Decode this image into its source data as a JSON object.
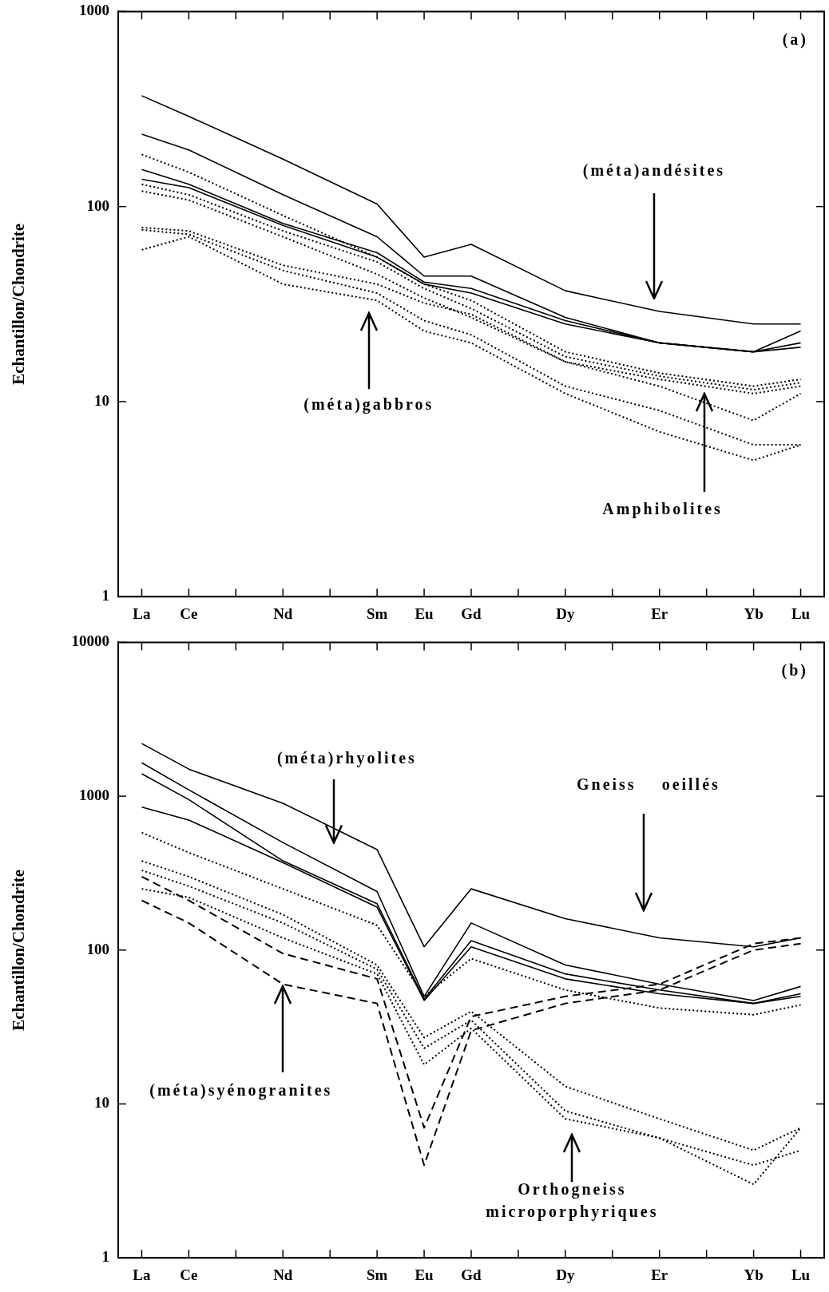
{
  "chart_data": [
    {
      "type": "line",
      "ylabel": "Echantillon/Chondrite",
      "categories": [
        "La",
        "Ce",
        null,
        "Nd",
        null,
        "Sm",
        "Eu",
        "Gd",
        null,
        "Dy",
        null,
        "Er",
        null,
        "Yb",
        "Lu"
      ],
      "log": true,
      "ylim": [
        1,
        1000
      ],
      "yticks": [
        1,
        10,
        100,
        1000
      ],
      "series": [
        {
          "color": "#000000",
          "line_style": "solid",
          "values": [
            370,
            290,
            null,
            175,
            null,
            103,
            55,
            64,
            null,
            37,
            null,
            29,
            null,
            25,
            25
          ]
        },
        {
          "color": "#000000",
          "line_style": "solid",
          "values": [
            235,
            195,
            null,
            115,
            null,
            70,
            44,
            44,
            null,
            27,
            null,
            20,
            null,
            18,
            23
          ]
        },
        {
          "color": "#000000",
          "line_style": "solid",
          "values": [
            155,
            130,
            null,
            82,
            null,
            58,
            41,
            38,
            null,
            26,
            null,
            20,
            null,
            18,
            20
          ]
        },
        {
          "color": "#000000",
          "line_style": "solid",
          "values": [
            138,
            125,
            null,
            80,
            null,
            55,
            40,
            36,
            null,
            25,
            null,
            20,
            null,
            18,
            19
          ]
        },
        {
          "color": "#000000",
          "line_style": "dotted",
          "values": [
            185,
            150,
            null,
            90,
            null,
            55,
            40,
            33,
            null,
            18,
            null,
            14,
            null,
            12,
            13
          ]
        },
        {
          "color": "#000000",
          "line_style": "dotted",
          "values": [
            130,
            115,
            null,
            75,
            null,
            52,
            38,
            30,
            null,
            17,
            null,
            13.5,
            null,
            11.5,
            12.5
          ]
        },
        {
          "color": "#000000",
          "line_style": "dotted",
          "values": [
            120,
            108,
            null,
            70,
            null,
            45,
            34,
            27,
            null,
            16,
            null,
            13,
            null,
            11,
            12
          ]
        },
        {
          "color": "#000000",
          "line_style": "dotted",
          "values": [
            78,
            75,
            null,
            50,
            null,
            40,
            32,
            28,
            null,
            16,
            null,
            12,
            null,
            8,
            11
          ]
        },
        {
          "color": "#000000",
          "line_style": "dotted",
          "values": [
            76,
            72,
            null,
            47,
            null,
            36,
            26,
            22,
            null,
            12,
            null,
            9,
            null,
            6,
            6
          ]
        },
        {
          "color": "#000000",
          "line_style": "dotted",
          "values": [
            60,
            70,
            null,
            40,
            null,
            33,
            23,
            20,
            null,
            11,
            null,
            7,
            null,
            5,
            6
          ]
        }
      ],
      "annotations": [
        "(a)",
        "(méta)andésites",
        "(méta)gabbros",
        "Amphibolites"
      ]
    },
    {
      "type": "line",
      "ylabel": "Echantillon/Chondrite",
      "categories": [
        "La",
        "Ce",
        null,
        "Nd",
        null,
        "Sm",
        "Eu",
        "Gd",
        null,
        "Dy",
        null,
        "Er",
        null,
        "Yb",
        "Lu"
      ],
      "log": true,
      "ylim": [
        1,
        10000
      ],
      "yticks": [
        1,
        10,
        100,
        1000,
        10000
      ],
      "series": [
        {
          "color": "#000000",
          "line_style": "solid",
          "values": [
            2200,
            1500,
            null,
            900,
            null,
            450,
            105,
            250,
            null,
            160,
            null,
            120,
            null,
            105,
            120
          ]
        },
        {
          "color": "#000000",
          "line_style": "solid",
          "values": [
            1650,
            1100,
            null,
            500,
            null,
            240,
            50,
            150,
            null,
            80,
            null,
            60,
            null,
            47,
            58
          ]
        },
        {
          "color": "#000000",
          "line_style": "solid",
          "values": [
            1400,
            950,
            null,
            380,
            null,
            200,
            48,
            115,
            null,
            70,
            null,
            55,
            null,
            45,
            50
          ]
        },
        {
          "color": "#000000",
          "line_style": "solid",
          "values": [
            850,
            700,
            null,
            370,
            null,
            190,
            47,
            105,
            null,
            65,
            null,
            52,
            null,
            45,
            52
          ]
        },
        {
          "color": "#000000",
          "line_style": "dotted",
          "values": [
            580,
            430,
            null,
            250,
            null,
            145,
            50,
            88,
            null,
            55,
            null,
            42,
            null,
            38,
            44
          ]
        },
        {
          "color": "#000000",
          "line_style": "dotted",
          "values": [
            380,
            300,
            null,
            170,
            null,
            80,
            27,
            40,
            null,
            13,
            null,
            8,
            null,
            5,
            7
          ]
        },
        {
          "color": "#000000",
          "line_style": "dotted",
          "values": [
            330,
            260,
            null,
            150,
            null,
            75,
            23,
            35,
            null,
            9,
            null,
            6,
            null,
            4,
            5
          ]
        },
        {
          "color": "#000000",
          "line_style": "dotted",
          "values": [
            250,
            220,
            null,
            120,
            null,
            70,
            18,
            31,
            null,
            8,
            null,
            6,
            null,
            3,
            7
          ]
        },
        {
          "color": "#000000",
          "line_style": "dashed",
          "values": [
            300,
            210,
            null,
            95,
            null,
            65,
            7,
            37,
            null,
            50,
            null,
            60,
            null,
            110,
            120
          ]
        },
        {
          "color": "#000000",
          "line_style": "dashed",
          "values": [
            210,
            150,
            null,
            60,
            null,
            45,
            4,
            30,
            null,
            45,
            null,
            55,
            null,
            100,
            110
          ]
        }
      ],
      "annotations": [
        "(b)",
        "(méta)rhyolites",
        "Gneiss    oeillés",
        {
          "text": "(méta)syénogranites",
          "x": "Nd",
          "y": 60
        },
        "Orthogneiss\nmicroporphyriques"
      ]
    }
  ]
}
